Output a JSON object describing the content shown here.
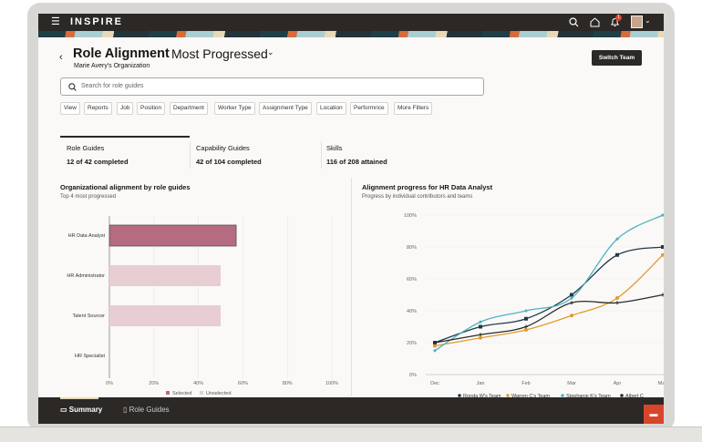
{
  "app": {
    "name": "INSPIRE",
    "notification_count": "1"
  },
  "header": {
    "title": "Role Alignment",
    "view": "Most Progressed",
    "subtitle": "Marie Avery's Organization",
    "switch_team": "Switch Team"
  },
  "search": {
    "placeholder": "Search for role guides"
  },
  "filters": [
    "View",
    "Reports",
    "Job",
    "Position",
    "Department",
    "Worker Type",
    "Assignment Type",
    "Location",
    "Performnce",
    "More Filters"
  ],
  "tabs": [
    {
      "label": "Role Guides",
      "value": "12 of 42 completed",
      "selected": true
    },
    {
      "label": "Capability Guides",
      "value": "42 of 104 completed"
    },
    {
      "label": "Skills",
      "value": "116 of 208 attained"
    }
  ],
  "bottom_nav": [
    {
      "label": "Summary",
      "icon": "presentation-icon",
      "selected": true
    },
    {
      "label": "Role Guides",
      "icon": "book-icon"
    }
  ],
  "colors": {
    "selected_bar": "#b56b80",
    "unselected_bar": "#e8cdd3",
    "ronda": "#1f3a4a",
    "warren": "#e39b2b",
    "stephanie": "#4fb3bf",
    "albert": "#2b2b2b",
    "chat": "#d9452b"
  },
  "chart_data": [
    {
      "type": "bar",
      "orientation": "horizontal",
      "title": "Organizational alignment by role guides",
      "subtitle": "Top 4 most progressed",
      "categories": [
        "HR Data Analyst",
        "HR Administrator",
        "Talent Sourcer",
        "HR Specialist"
      ],
      "values": [
        57,
        50,
        50,
        0
      ],
      "selected": [
        true,
        false,
        false,
        false
      ],
      "xlim": [
        0,
        100
      ],
      "xticks": [
        "0%",
        "20%",
        "40%",
        "60%",
        "80%",
        "100%"
      ],
      "grid": true,
      "legend": [
        "Selected",
        "Unselected"
      ],
      "legend_position": "bottom"
    },
    {
      "type": "line",
      "title": "Alignment progress for HR Data Analyst",
      "subtitle": "Progress by individual contributors and teams",
      "categories": [
        "Dec",
        "Jan",
        "Feb",
        "Mar",
        "Apr",
        "May"
      ],
      "ylim": [
        0,
        100
      ],
      "yticks": [
        "0%",
        "20%",
        "40%",
        "60%",
        "80%",
        "100%"
      ],
      "grid": true,
      "legend_position": "bottom",
      "series": [
        {
          "name": "Ronda W's Team",
          "marker": "square",
          "values": [
            20,
            30,
            35,
            50,
            75,
            80
          ]
        },
        {
          "name": "Warren C's Team",
          "marker": "circle",
          "values": [
            18,
            23,
            28,
            37,
            48,
            75
          ]
        },
        {
          "name": "Stephanie K's Team",
          "marker": "diamond",
          "values": [
            15,
            33,
            40,
            48,
            85,
            100
          ]
        },
        {
          "name": "Albert C",
          "marker": "plus",
          "values": [
            20,
            25,
            30,
            45,
            45,
            50
          ]
        }
      ]
    }
  ]
}
